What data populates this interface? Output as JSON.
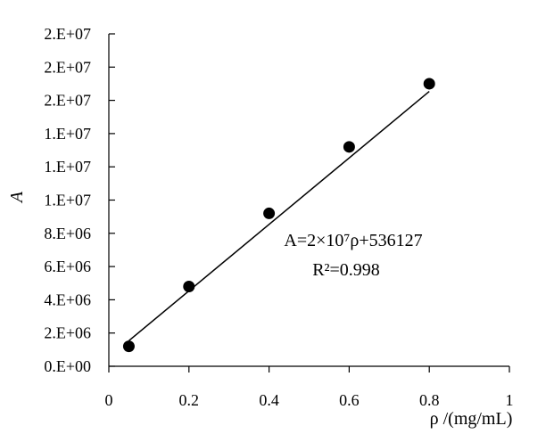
{
  "chart_data": {
    "type": "scatter",
    "title": "",
    "xlabel": "ρ /(mg/mL)",
    "ylabel": "A",
    "xlim": [
      0,
      1
    ],
    "ylim": [
      0,
      20000000
    ],
    "grid": false,
    "x_ticks": [
      0,
      0.2,
      0.4,
      0.6,
      0.8,
      1
    ],
    "x_tick_labels": [
      "0",
      "0.2",
      "0.4",
      "0.6",
      "0.8",
      "1"
    ],
    "y_ticks": [
      0,
      2000000,
      4000000,
      6000000,
      8000000,
      10000000,
      12000000,
      14000000,
      16000000,
      18000000,
      20000000
    ],
    "y_tick_labels": [
      "0.E+00",
      "2.E+06",
      "4.E+06",
      "6.E+06",
      "8.E+06",
      "1.E+07",
      "1.E+07",
      "1.E+07",
      "2.E+07",
      "2.E+07",
      "2.E+07"
    ],
    "series": [
      {
        "x": [
          0.05,
          0.2,
          0.4,
          0.6,
          0.8
        ],
        "y": [
          1200000,
          4800000,
          9200000,
          13200000,
          17000000
        ]
      }
    ],
    "trendline": {
      "x_range": [
        0.05,
        0.8
      ],
      "slope": 20000000,
      "intercept": 536127
    },
    "annotations": {
      "equation": "A=2×10⁷ρ+536127",
      "r_squared": "R²=0.998"
    }
  }
}
